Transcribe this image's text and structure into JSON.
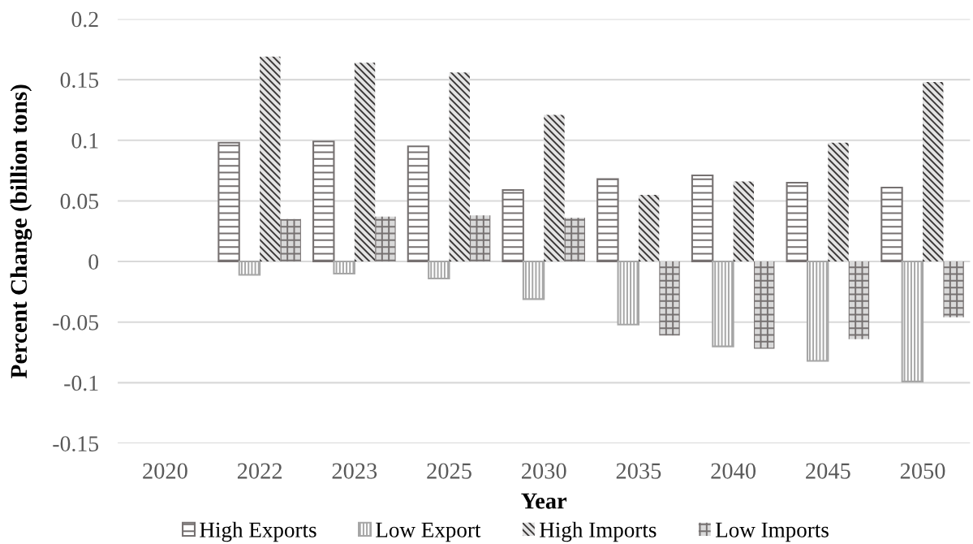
{
  "chart_data": {
    "type": "bar",
    "xlabel": "Year",
    "ylabel": "Percent Change (billion tons)",
    "categories": [
      "2020",
      "2022",
      "2023",
      "2025",
      "2030",
      "2035",
      "2040",
      "2045",
      "2050"
    ],
    "series": [
      {
        "name": "High Exports",
        "color": "#767171",
        "values": [
          null,
          0.098,
          0.099,
          0.095,
          0.059,
          0.068,
          0.071,
          0.065,
          0.061
        ]
      },
      {
        "name": "Low Export",
        "color": "#a6a6a6",
        "values": [
          null,
          -0.011,
          -0.01,
          -0.014,
          -0.031,
          -0.052,
          -0.07,
          -0.082,
          -0.099
        ]
      },
      {
        "name": "High Imports",
        "color": "#3b3838",
        "values": [
          null,
          0.169,
          0.164,
          0.156,
          0.121,
          0.055,
          0.066,
          0.098,
          0.148
        ]
      },
      {
        "name": "Low Imports",
        "color": "#767171",
        "values": [
          null,
          0.035,
          0.037,
          0.038,
          0.036,
          -0.061,
          -0.072,
          -0.064,
          -0.046
        ]
      }
    ],
    "ylim": [
      -0.15,
      0.2
    ],
    "yticks": [
      -0.15,
      -0.1,
      -0.05,
      0,
      0.05,
      0.1,
      0.15,
      0.2
    ],
    "grid": "y",
    "legend": "bottom"
  }
}
